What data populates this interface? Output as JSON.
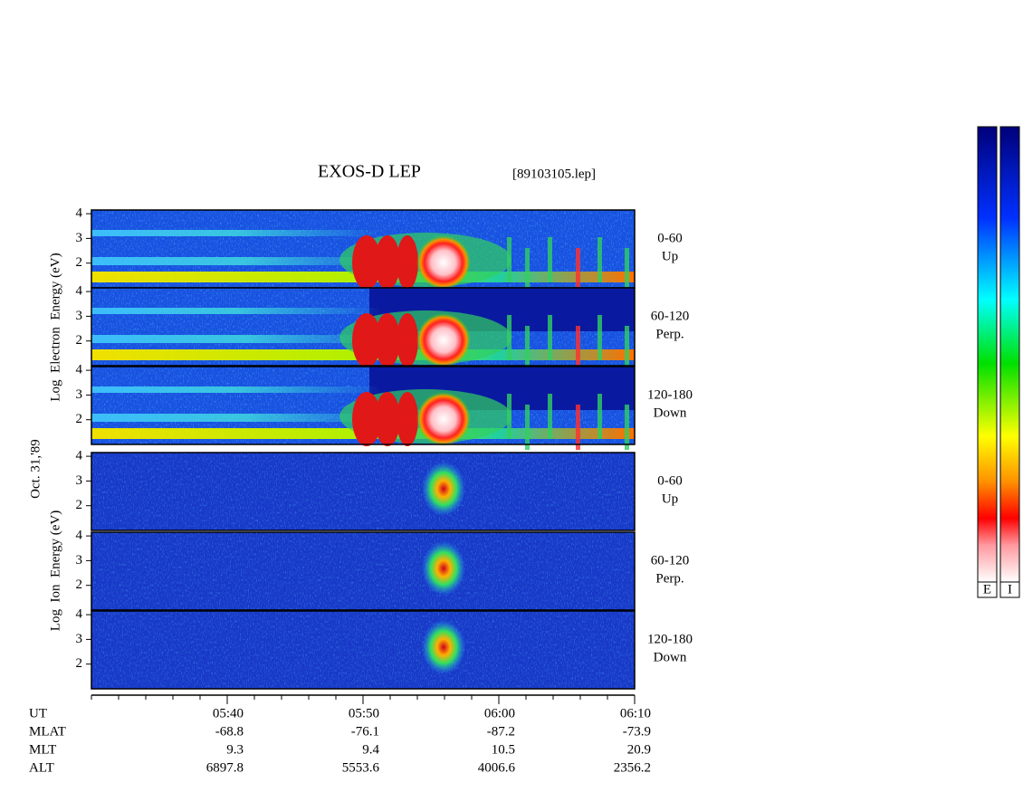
{
  "title": "EXOS-D LEP",
  "file": "[89103105.lep]",
  "date": "Oct. 31,'89",
  "colorbars": [
    "E",
    "I"
  ],
  "groups": [
    {
      "axis_label": "Log  Electron  Energy (eV)",
      "kind": "electron",
      "panels": [
        {
          "angle": "0-60",
          "direction": "Up",
          "ylim": [
            1,
            4.15
          ],
          "yticks": [
            2,
            3,
            4
          ]
        },
        {
          "angle": "60-120",
          "direction": "Perp.",
          "ylim": [
            1,
            4.15
          ],
          "yticks": [
            2,
            3,
            4
          ]
        },
        {
          "angle": "120-180",
          "direction": "Down",
          "ylim": [
            1,
            4.15
          ],
          "yticks": [
            2,
            3,
            4
          ]
        }
      ]
    },
    {
      "axis_label": "Log  Ion  Energy (eV)",
      "kind": "ion",
      "panels": [
        {
          "angle": "0-60",
          "direction": "Up",
          "ylim": [
            1,
            4.15
          ],
          "yticks": [
            2,
            3,
            4
          ]
        },
        {
          "angle": "60-120",
          "direction": "Perp.",
          "ylim": [
            1,
            4.15
          ],
          "yticks": [
            2,
            3,
            4
          ]
        },
        {
          "angle": "120-180",
          "direction": "Down",
          "ylim": [
            1,
            4.15
          ],
          "yticks": [
            2,
            3,
            4
          ]
        }
      ]
    }
  ],
  "time_axis": {
    "xlim": [
      "05:30",
      "06:10"
    ],
    "xticks": [
      "05:40",
      "05:50",
      "06:00",
      "06:10"
    ]
  },
  "ephemeris": [
    {
      "label": "UT"
    },
    {
      "label": "MLAT",
      "values": [
        "-68.8",
        "-76.1",
        "-87.2",
        "-73.9"
      ]
    },
    {
      "label": "MLT",
      "values": [
        "9.3",
        "9.4",
        "10.5",
        "20.9"
      ]
    },
    {
      "label": "ALT",
      "values": [
        "6897.8",
        "5553.6",
        "4006.6",
        "2356.2"
      ]
    }
  ]
}
